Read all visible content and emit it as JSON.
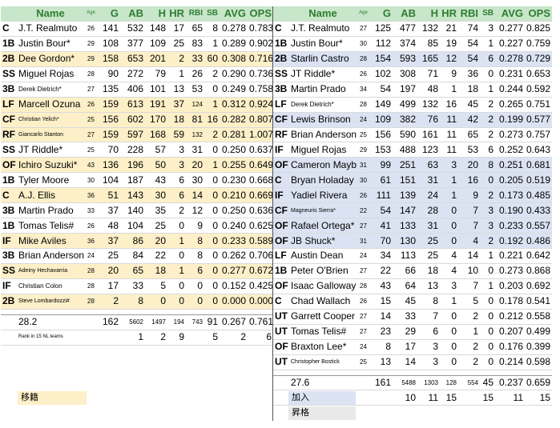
{
  "headers": {
    "pos": "",
    "name": "Name",
    "age": "Age",
    "g": "G",
    "ab": "AB",
    "h": "H",
    "hr": "HR",
    "rbi": "RBI",
    "sb": "SB",
    "avg": "AVG",
    "ops": "OPS"
  },
  "left_rows": [
    {
      "pos": "C",
      "name": "J.T. Realmuto",
      "age": "26",
      "g": "141",
      "ab": "532",
      "h": "148",
      "hr": "17",
      "rbi": "65",
      "sb": "8",
      "avg": "0.278",
      "ops": "0.783",
      "hl": false
    },
    {
      "pos": "1B",
      "name": "Justin Bour*",
      "age": "29",
      "g": "108",
      "ab": "377",
      "h": "109",
      "hr": "25",
      "rbi": "83",
      "sb": "1",
      "avg": "0.289",
      "ops": "0.902",
      "hl": false
    },
    {
      "pos": "2B",
      "name": "Dee Gordon*",
      "age": "29",
      "g": "158",
      "ab": "653",
      "h": "201",
      "hr": "2",
      "rbi": "33",
      "sb": "60",
      "avg": "0.308",
      "ops": "0.716",
      "hl": true
    },
    {
      "pos": "SS",
      "name": "Miguel Rojas",
      "age": "28",
      "g": "90",
      "ab": "272",
      "h": "79",
      "hr": "1",
      "rbi": "26",
      "sb": "2",
      "avg": "0.290",
      "ops": "0.736",
      "hl": false
    },
    {
      "pos": "3B",
      "name": "Derek Dietrich*",
      "age": "27",
      "g": "135",
      "ab": "406",
      "h": "101",
      "hr": "13",
      "rbi": "53",
      "sb": "0",
      "avg": "0.249",
      "ops": "0.758",
      "hl": false
    },
    {
      "pos": "LF",
      "name": "Marcell Ozuna",
      "age": "26",
      "g": "159",
      "ab": "613",
      "h": "191",
      "hr": "37",
      "rbi": "124",
      "sb": "1",
      "avg": "0.312",
      "ops": "0.924",
      "hl": true
    },
    {
      "pos": "CF",
      "name": "Christian Yelich*",
      "age": "25",
      "g": "156",
      "ab": "602",
      "h": "170",
      "hr": "18",
      "rbi": "81",
      "sb": "16",
      "avg": "0.282",
      "ops": "0.807",
      "hl": true
    },
    {
      "pos": "RF",
      "name": "Giancarlo Stanton",
      "age": "27",
      "g": "159",
      "ab": "597",
      "h": "168",
      "hr": "59",
      "rbi": "132",
      "sb": "2",
      "avg": "0.281",
      "ops": "1.007",
      "hl": true
    },
    {
      "pos": "SS",
      "name": "JT Riddle*",
      "age": "25",
      "g": "70",
      "ab": "228",
      "h": "57",
      "hr": "3",
      "rbi": "31",
      "sb": "0",
      "avg": "0.250",
      "ops": "0.637",
      "hl": false
    },
    {
      "pos": "OF",
      "name": "Ichiro Suzuki*",
      "age": "43",
      "g": "136",
      "ab": "196",
      "h": "50",
      "hr": "3",
      "rbi": "20",
      "sb": "1",
      "avg": "0.255",
      "ops": "0.649",
      "hl": true
    },
    {
      "pos": "1B",
      "name": "Tyler Moore",
      "age": "30",
      "g": "104",
      "ab": "187",
      "h": "43",
      "hr": "6",
      "rbi": "30",
      "sb": "0",
      "avg": "0.230",
      "ops": "0.668",
      "hl": false
    },
    {
      "pos": "C",
      "name": "A.J. Ellis",
      "age": "36",
      "g": "51",
      "ab": "143",
      "h": "30",
      "hr": "6",
      "rbi": "14",
      "sb": "0",
      "avg": "0.210",
      "ops": "0.669",
      "hl": true
    },
    {
      "pos": "3B",
      "name": "Martin Prado",
      "age": "33",
      "g": "37",
      "ab": "140",
      "h": "35",
      "hr": "2",
      "rbi": "12",
      "sb": "0",
      "avg": "0.250",
      "ops": "0.636",
      "hl": false
    },
    {
      "pos": "1B",
      "name": "Tomas Telis#",
      "age": "26",
      "g": "48",
      "ab": "104",
      "h": "25",
      "hr": "0",
      "rbi": "9",
      "sb": "0",
      "avg": "0.240",
      "ops": "0.625",
      "hl": false
    },
    {
      "pos": "IF",
      "name": "Mike Aviles",
      "age": "36",
      "g": "37",
      "ab": "86",
      "h": "20",
      "hr": "1",
      "rbi": "8",
      "sb": "0",
      "avg": "0.233",
      "ops": "0.589",
      "hl": true
    },
    {
      "pos": "3B",
      "name": "Brian Anderson",
      "age": "24",
      "g": "25",
      "ab": "84",
      "h": "22",
      "hr": "0",
      "rbi": "8",
      "sb": "0",
      "avg": "0.262",
      "ops": "0.706",
      "hl": false
    },
    {
      "pos": "SS",
      "name": "Adeiny Hechavarria",
      "age": "28",
      "g": "20",
      "ab": "65",
      "h": "18",
      "hr": "1",
      "rbi": "6",
      "sb": "0",
      "avg": "0.277",
      "ops": "0.672",
      "hl": true
    },
    {
      "pos": "IF",
      "name": "Christian Colon",
      "age": "28",
      "g": "17",
      "ab": "33",
      "h": "5",
      "hr": "0",
      "rbi": "0",
      "sb": "0",
      "avg": "0.152",
      "ops": "0.425",
      "hl": false
    },
    {
      "pos": "2B",
      "name": "Steve Lombardozzi#",
      "age": "28",
      "g": "2",
      "ab": "8",
      "h": "0",
      "hr": "0",
      "rbi": "0",
      "sb": "0",
      "avg": "0.000",
      "ops": "0.000",
      "hl": true
    }
  ],
  "right_rows": [
    {
      "pos": "C",
      "name": "J.T. Realmuto",
      "age": "27",
      "g": "125",
      "ab": "477",
      "h": "132",
      "hr": "21",
      "rbi": "74",
      "sb": "3",
      "avg": "0.277",
      "ops": "0.825",
      "hl": false
    },
    {
      "pos": "1B",
      "name": "Justin Bour*",
      "age": "30",
      "g": "112",
      "ab": "374",
      "h": "85",
      "hr": "19",
      "rbi": "54",
      "sb": "1",
      "avg": "0.227",
      "ops": "0.759",
      "hl": false
    },
    {
      "pos": "2B",
      "name": "Starlin Castro",
      "age": "28",
      "g": "154",
      "ab": "593",
      "h": "165",
      "hr": "12",
      "rbi": "54",
      "sb": "6",
      "avg": "0.278",
      "ops": "0.729",
      "hl": true
    },
    {
      "pos": "SS",
      "name": "JT Riddle*",
      "age": "26",
      "g": "102",
      "ab": "308",
      "h": "71",
      "hr": "9",
      "rbi": "36",
      "sb": "0",
      "avg": "0.231",
      "ops": "0.653",
      "hl": false
    },
    {
      "pos": "3B",
      "name": "Martin Prado",
      "age": "34",
      "g": "54",
      "ab": "197",
      "h": "48",
      "hr": "1",
      "rbi": "18",
      "sb": "1",
      "avg": "0.244",
      "ops": "0.592",
      "hl": false
    },
    {
      "pos": "LF",
      "name": "Derek Dietrich*",
      "age": "28",
      "g": "149",
      "ab": "499",
      "h": "132",
      "hr": "16",
      "rbi": "45",
      "sb": "2",
      "avg": "0.265",
      "ops": "0.751",
      "hl": false
    },
    {
      "pos": "CF",
      "name": "Lewis Brinson",
      "age": "24",
      "g": "109",
      "ab": "382",
      "h": "76",
      "hr": "11",
      "rbi": "42",
      "sb": "2",
      "avg": "0.199",
      "ops": "0.577",
      "hl": true
    },
    {
      "pos": "RF",
      "name": "Brian Anderson",
      "age": "25",
      "g": "156",
      "ab": "590",
      "h": "161",
      "hr": "11",
      "rbi": "65",
      "sb": "2",
      "avg": "0.273",
      "ops": "0.757",
      "hl": false
    },
    {
      "pos": "IF",
      "name": "Miguel Rojas",
      "age": "29",
      "g": "153",
      "ab": "488",
      "h": "123",
      "hr": "11",
      "rbi": "53",
      "sb": "6",
      "avg": "0.252",
      "ops": "0.643",
      "hl": false
    },
    {
      "pos": "OF",
      "name": "Cameron Maybin",
      "age": "31",
      "g": "99",
      "ab": "251",
      "h": "63",
      "hr": "3",
      "rbi": "20",
      "sb": "8",
      "avg": "0.251",
      "ops": "0.681",
      "hl": true
    },
    {
      "pos": "C",
      "name": "Bryan Holaday",
      "age": "30",
      "g": "61",
      "ab": "151",
      "h": "31",
      "hr": "1",
      "rbi": "16",
      "sb": "0",
      "avg": "0.205",
      "ops": "0.519",
      "hl": true
    },
    {
      "pos": "IF",
      "name": "Yadiel Rivera",
      "age": "26",
      "g": "111",
      "ab": "139",
      "h": "24",
      "hr": "1",
      "rbi": "9",
      "sb": "2",
      "avg": "0.173",
      "ops": "0.485",
      "hl": true
    },
    {
      "pos": "CF",
      "name": "Magneuris Sierra*",
      "age": "22",
      "g": "54",
      "ab": "147",
      "h": "28",
      "hr": "0",
      "rbi": "7",
      "sb": "3",
      "avg": "0.190",
      "ops": "0.433",
      "hl": true
    },
    {
      "pos": "OF",
      "name": "Rafael Ortega*",
      "age": "27",
      "g": "41",
      "ab": "133",
      "h": "31",
      "hr": "0",
      "rbi": "7",
      "sb": "3",
      "avg": "0.233",
      "ops": "0.557",
      "hl": true
    },
    {
      "pos": "OF",
      "name": "JB Shuck*",
      "age": "31",
      "g": "70",
      "ab": "130",
      "h": "25",
      "hr": "0",
      "rbi": "4",
      "sb": "2",
      "avg": "0.192",
      "ops": "0.486",
      "hl": true
    },
    {
      "pos": "LF",
      "name": "Austin Dean",
      "age": "24",
      "g": "34",
      "ab": "113",
      "h": "25",
      "hr": "4",
      "rbi": "14",
      "sb": "1",
      "avg": "0.221",
      "ops": "0.642",
      "hl": false
    },
    {
      "pos": "1B",
      "name": "Peter O'Brien",
      "age": "27",
      "g": "22",
      "ab": "66",
      "h": "18",
      "hr": "4",
      "rbi": "10",
      "sb": "0",
      "avg": "0.273",
      "ops": "0.868",
      "hl": false
    },
    {
      "pos": "OF",
      "name": "Isaac Galloway",
      "age": "28",
      "g": "43",
      "ab": "64",
      "h": "13",
      "hr": "3",
      "rbi": "7",
      "sb": "1",
      "avg": "0.203",
      "ops": "0.692",
      "hl": false
    },
    {
      "pos": "C",
      "name": "Chad Wallach",
      "age": "26",
      "g": "15",
      "ab": "45",
      "h": "8",
      "hr": "1",
      "rbi": "5",
      "sb": "0",
      "avg": "0.178",
      "ops": "0.541",
      "hl": false
    },
    {
      "pos": "UT",
      "name": "Garrett Cooper",
      "age": "27",
      "g": "14",
      "ab": "33",
      "h": "7",
      "hr": "0",
      "rbi": "2",
      "sb": "0",
      "avg": "0.212",
      "ops": "0.558",
      "hl": false
    },
    {
      "pos": "UT",
      "name": "Tomas Telis#",
      "age": "27",
      "g": "23",
      "ab": "29",
      "h": "6",
      "hr": "0",
      "rbi": "1",
      "sb": "0",
      "avg": "0.207",
      "ops": "0.499",
      "hl": false
    },
    {
      "pos": "OF",
      "name": "Braxton Lee*",
      "age": "24",
      "g": "8",
      "ab": "17",
      "h": "3",
      "hr": "0",
      "rbi": "2",
      "sb": "0",
      "avg": "0.176",
      "ops": "0.399",
      "hl": false
    },
    {
      "pos": "UT",
      "name": "Christopher Bostick",
      "age": "25",
      "g": "13",
      "ab": "14",
      "h": "3",
      "hr": "0",
      "rbi": "2",
      "sb": "0",
      "avg": "0.214",
      "ops": "0.598",
      "hl": false
    }
  ],
  "left_summary": {
    "age": "28.2",
    "g": "162",
    "ab": "5602",
    "h": "1497",
    "hr": "194",
    "rbi": "743",
    "sb": "91",
    "avg": "0.267",
    "ops": "0.761"
  },
  "left_rank": {
    "label": "Rank in 15 NL teams",
    "g": "",
    "ab": "1",
    "h": "2",
    "hr": "9",
    "rbi": "",
    "sb": "5",
    "avg": "2",
    "ops": "6"
  },
  "right_summary": {
    "age": "27.6",
    "g": "161",
    "ab": "5488",
    "h": "1303",
    "hr": "128",
    "rbi": "554",
    "sb": "45",
    "avg": "0.237",
    "ops": "0.659"
  },
  "right_rank": {
    "label": "Rank in 15 NL teams",
    "g": "",
    "ab": "10",
    "h": "11",
    "hr": "15",
    "rbi": "",
    "sb": "15",
    "avg": "11",
    "ops": "15"
  },
  "legend": {
    "left": "移籍",
    "right_added": "加入",
    "right_promoted": "昇格"
  },
  "colors": {
    "header_bg": "#c8e6c9",
    "header_text": "#2e7d32",
    "left_highlight": "#fdf0c8",
    "right_highlight": "#dbe3f3"
  }
}
